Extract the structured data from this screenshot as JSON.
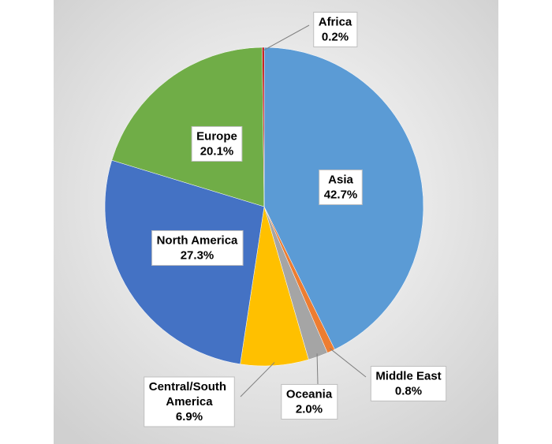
{
  "chart_data": {
    "type": "pie",
    "categories": [
      "Asia",
      "Middle East",
      "Oceania",
      "Central/South America",
      "North America",
      "Europe",
      "Africa"
    ],
    "values": [
      42.7,
      0.8,
      2.0,
      6.9,
      27.3,
      20.1,
      0.2
    ],
    "value_labels": [
      "42.7%",
      "0.8%",
      "2.0%",
      "6.9%",
      "27.3%",
      "20.1%",
      "0.2%"
    ],
    "colors": [
      "#5b9bd5",
      "#ed7d31",
      "#a5a5a5",
      "#ffc000",
      "#4472c4",
      "#70ad47",
      "#c00000"
    ]
  }
}
